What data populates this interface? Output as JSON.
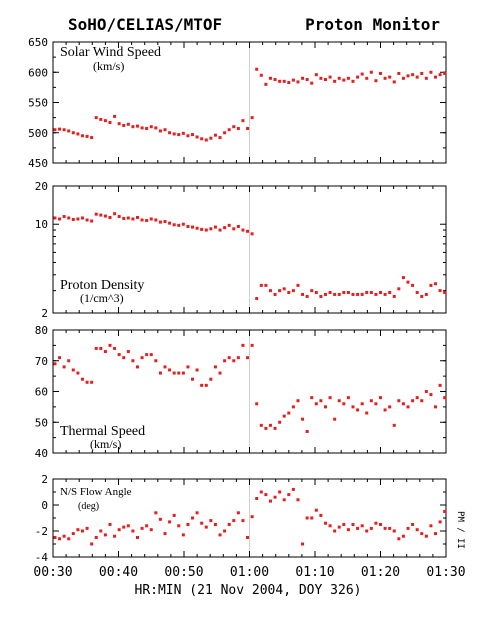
{
  "header": {
    "left_title": "SoHO/CELIAS/MTOF",
    "right_title": "Proton Monitor"
  },
  "footer": {
    "xlabel": "HR:MIN (21 Nov 2004, DOY 326)",
    "side_label": "PM / II"
  },
  "x_axis": {
    "ticks": [
      "00:30",
      "00:40",
      "00:50",
      "01:00",
      "01:10",
      "01:20",
      "01:30"
    ],
    "range_min": [
      30,
      90
    ]
  },
  "colors": {
    "data": "#e81e1e",
    "axes": "#000000",
    "divider": "#d0d0d0"
  },
  "chart_data": [
    {
      "type": "scatter",
      "id": "speed",
      "title_line1": "Solar Wind Speed",
      "title_line2": "(km/s)",
      "ylim": [
        450,
        650
      ],
      "yticks": [
        450,
        500,
        550,
        600,
        650
      ],
      "x_unit": "minutes after 00:00 UT",
      "x": [
        30.3,
        31,
        31.7,
        32.4,
        33.1,
        33.8,
        34.5,
        35.2,
        35.9,
        36.6,
        37.3,
        38,
        38.7,
        39.4,
        40.1,
        40.8,
        41.5,
        42.2,
        42.9,
        43.6,
        44.3,
        45,
        45.7,
        46.4,
        47.1,
        47.8,
        48.5,
        49.2,
        49.9,
        50.6,
        51.3,
        52,
        52.7,
        53.4,
        54.1,
        54.8,
        55.5,
        56.2,
        56.9,
        57.6,
        58.3,
        59,
        59.7,
        60.4,
        61.1,
        61.8,
        62.5,
        63.2,
        63.9,
        64.6,
        65.3,
        66,
        66.7,
        67.4,
        68.1,
        68.8,
        69.5,
        70.2,
        70.9,
        71.6,
        72.3,
        73,
        73.7,
        74.4,
        75.1,
        75.8,
        76.5,
        77.2,
        77.9,
        78.6,
        79.3,
        80,
        80.7,
        81.4,
        82.1,
        82.8,
        83.5,
        84.2,
        84.9,
        85.6,
        86.3,
        87,
        87.7,
        88.4,
        89.1,
        89.8
      ],
      "y": [
        505,
        506,
        505,
        503,
        500,
        498,
        495,
        494,
        492,
        525,
        522,
        520,
        517,
        527,
        515,
        512,
        514,
        510,
        511,
        508,
        507,
        510,
        508,
        503,
        505,
        500,
        498,
        497,
        499,
        495,
        497,
        493,
        490,
        488,
        491,
        496,
        492,
        500,
        505,
        510,
        507,
        520,
        507,
        525,
        605,
        595,
        580,
        590,
        588,
        585,
        585,
        583,
        587,
        584,
        590,
        588,
        582,
        596,
        590,
        588,
        592,
        585,
        590,
        587,
        590,
        585,
        592,
        597,
        590,
        600,
        586,
        598,
        590,
        592,
        584,
        598,
        590,
        594,
        596,
        592,
        598,
        590,
        600,
        592,
        596,
        598
      ],
      "y_unit": "km/s"
    },
    {
      "type": "scatter",
      "id": "density",
      "title_line1": "Proton Density",
      "title_line2": "(1/cm^3)",
      "scale": "log",
      "ylim": [
        2,
        20
      ],
      "yticks": [
        2,
        10,
        20
      ],
      "x_unit": "minutes after 00:00 UT",
      "x": [
        30.3,
        31,
        31.7,
        32.4,
        33.1,
        33.8,
        34.5,
        35.2,
        35.9,
        36.6,
        37.3,
        38,
        38.7,
        39.4,
        40.1,
        40.8,
        41.5,
        42.2,
        42.9,
        43.6,
        44.3,
        45,
        45.7,
        46.4,
        47.1,
        47.8,
        48.5,
        49.2,
        49.9,
        50.6,
        51.3,
        52,
        52.7,
        53.4,
        54.1,
        54.8,
        55.5,
        56.2,
        56.9,
        57.6,
        58.3,
        59,
        59.7,
        60.4,
        61.1,
        61.8,
        62.5,
        63.2,
        63.9,
        64.6,
        65.3,
        66,
        66.7,
        67.4,
        68.1,
        68.8,
        69.5,
        70.2,
        70.9,
        71.6,
        72.3,
        73,
        73.7,
        74.4,
        75.1,
        75.8,
        76.5,
        77.2,
        77.9,
        78.6,
        79.3,
        80,
        80.7,
        81.4,
        82.1,
        82.8,
        83.5,
        84.2,
        84.9,
        85.6,
        86.3,
        87,
        87.7,
        88.4,
        89.1,
        89.8
      ],
      "y": [
        11.2,
        11.0,
        11.5,
        11.2,
        10.9,
        11.0,
        11.2,
        10.8,
        10.6,
        12.0,
        11.8,
        11.6,
        11.3,
        12.1,
        11.5,
        11.1,
        11.2,
        11.0,
        11.3,
        10.8,
        10.7,
        11.0,
        10.8,
        10.4,
        10.5,
        10.2,
        9.9,
        9.8,
        10.0,
        9.6,
        9.5,
        9.3,
        9.1,
        9.0,
        9.2,
        9.5,
        9.0,
        9.4,
        9.8,
        9.2,
        9.6,
        9.0,
        8.8,
        8.4,
        2.6,
        3.3,
        3.3,
        3.0,
        2.8,
        3.0,
        3.1,
        2.9,
        3.0,
        3.3,
        2.8,
        2.7,
        3.0,
        2.9,
        2.7,
        2.8,
        2.9,
        2.8,
        2.8,
        2.9,
        2.9,
        2.8,
        2.8,
        2.8,
        2.9,
        2.9,
        2.8,
        2.9,
        2.8,
        2.9,
        2.7,
        3.1,
        3.8,
        3.5,
        3.3,
        2.9,
        2.7,
        2.8,
        3.3,
        3.4,
        3.0,
        2.9
      ],
      "y_unit": "1/cm^3"
    },
    {
      "type": "scatter",
      "id": "thermal",
      "title_line1": "Thermal Speed",
      "title_line2": "(km/s)",
      "ylim": [
        40,
        80
      ],
      "yticks": [
        40,
        50,
        60,
        70,
        80
      ],
      "x_unit": "minutes after 00:00 UT",
      "x": [
        30.3,
        31,
        31.7,
        32.4,
        33.1,
        33.8,
        34.5,
        35.2,
        35.9,
        36.6,
        37.3,
        38,
        38.7,
        39.4,
        40.1,
        40.8,
        41.5,
        42.2,
        42.9,
        43.6,
        44.3,
        45,
        45.7,
        46.4,
        47.1,
        47.8,
        48.5,
        49.2,
        49.9,
        50.6,
        51.3,
        52,
        52.7,
        53.4,
        54.1,
        54.8,
        55.5,
        56.2,
        56.9,
        57.6,
        58.3,
        59,
        59.7,
        60.4,
        61.1,
        61.8,
        62.5,
        63.2,
        63.9,
        64.6,
        65.3,
        66,
        66.7,
        67.4,
        68.1,
        68.8,
        69.5,
        70.2,
        70.9,
        71.6,
        72.3,
        73,
        73.7,
        74.4,
        75.1,
        75.8,
        76.5,
        77.2,
        77.9,
        78.6,
        79.3,
        80,
        80.7,
        81.4,
        82.1,
        82.8,
        83.5,
        84.2,
        84.9,
        85.6,
        86.3,
        87,
        87.7,
        88.4,
        89.1,
        89.8
      ],
      "y": [
        69,
        71,
        68,
        70,
        67,
        66,
        64,
        63,
        63,
        74,
        74,
        73,
        75,
        74,
        72,
        71,
        73,
        70,
        68,
        71,
        72,
        72,
        70,
        66,
        68,
        67,
        66,
        66,
        66,
        68,
        64,
        67,
        62,
        62,
        64,
        68,
        66,
        70,
        71,
        70,
        71,
        75,
        71,
        75,
        56,
        49,
        48,
        49,
        48,
        50,
        52,
        53,
        55,
        57,
        51,
        47,
        58,
        56,
        57,
        55,
        58,
        51,
        57,
        56,
        58,
        55,
        54,
        56,
        53,
        57,
        56,
        58,
        54,
        55,
        49,
        57,
        56,
        55,
        57,
        58,
        57,
        60,
        59,
        55,
        62,
        58
      ],
      "y_unit": "km/s"
    },
    {
      "type": "scatter",
      "id": "flow",
      "title_line1": "N/S Flow Angle",
      "title_line2": "(deg)",
      "ylim": [
        -4,
        2
      ],
      "yticks": [
        -4,
        -2,
        0,
        2
      ],
      "x_unit": "minutes after 00:00 UT",
      "x": [
        30.3,
        31,
        31.7,
        32.4,
        33.1,
        33.8,
        34.5,
        35.2,
        35.9,
        36.6,
        37.3,
        38,
        38.7,
        39.4,
        40.1,
        40.8,
        41.5,
        42.2,
        42.9,
        43.6,
        44.3,
        45,
        45.7,
        46.4,
        47.1,
        47.8,
        48.5,
        49.2,
        49.9,
        50.6,
        51.3,
        52,
        52.7,
        53.4,
        54.1,
        54.8,
        55.5,
        56.2,
        56.9,
        57.6,
        58.3,
        59,
        59.7,
        60.4,
        61.1,
        61.8,
        62.5,
        63.2,
        63.9,
        64.6,
        65.3,
        66,
        66.7,
        67.4,
        68.1,
        68.8,
        69.5,
        70.2,
        70.9,
        71.6,
        72.3,
        73,
        73.7,
        74.4,
        75.1,
        75.8,
        76.5,
        77.2,
        77.9,
        78.6,
        79.3,
        80,
        80.7,
        81.4,
        82.1,
        82.8,
        83.5,
        84.2,
        84.9,
        85.6,
        86.3,
        87,
        87.7,
        88.4,
        89.1,
        89.8
      ],
      "y": [
        -2.5,
        -2.6,
        -2.4,
        -2.6,
        -2.2,
        -1.9,
        -2.0,
        -1.8,
        -3.0,
        -2.5,
        -2.0,
        -2.3,
        -1.5,
        -2.4,
        -1.9,
        -1.7,
        -1.6,
        -2.0,
        -2.5,
        -1.8,
        -1.6,
        -1.9,
        -0.6,
        -1.1,
        -2.2,
        -1.3,
        -0.8,
        -1.6,
        -2.3,
        -1.5,
        -1.0,
        -0.6,
        -1.4,
        -1.7,
        -1.2,
        -1.5,
        -2.3,
        -2.0,
        -1.5,
        -1.2,
        -0.6,
        -1.2,
        -2.5,
        -0.9,
        0.5,
        1.0,
        0.8,
        0.3,
        0.6,
        1.0,
        0.4,
        0.8,
        1.2,
        0.4,
        -3.0,
        -1.0,
        -1.0,
        -0.4,
        -0.8,
        -1.4,
        -1.6,
        -2.0,
        -1.7,
        -1.5,
        -1.9,
        -1.5,
        -1.8,
        -1.6,
        -2.0,
        -1.8,
        -1.4,
        -1.5,
        -1.8,
        -1.8,
        -2.0,
        -2.6,
        -2.4,
        -1.8,
        -1.5,
        -1.9,
        -2.2,
        -2.4,
        -1.6,
        -2.2,
        -1.3,
        -0.5
      ],
      "y_unit": "deg"
    }
  ]
}
